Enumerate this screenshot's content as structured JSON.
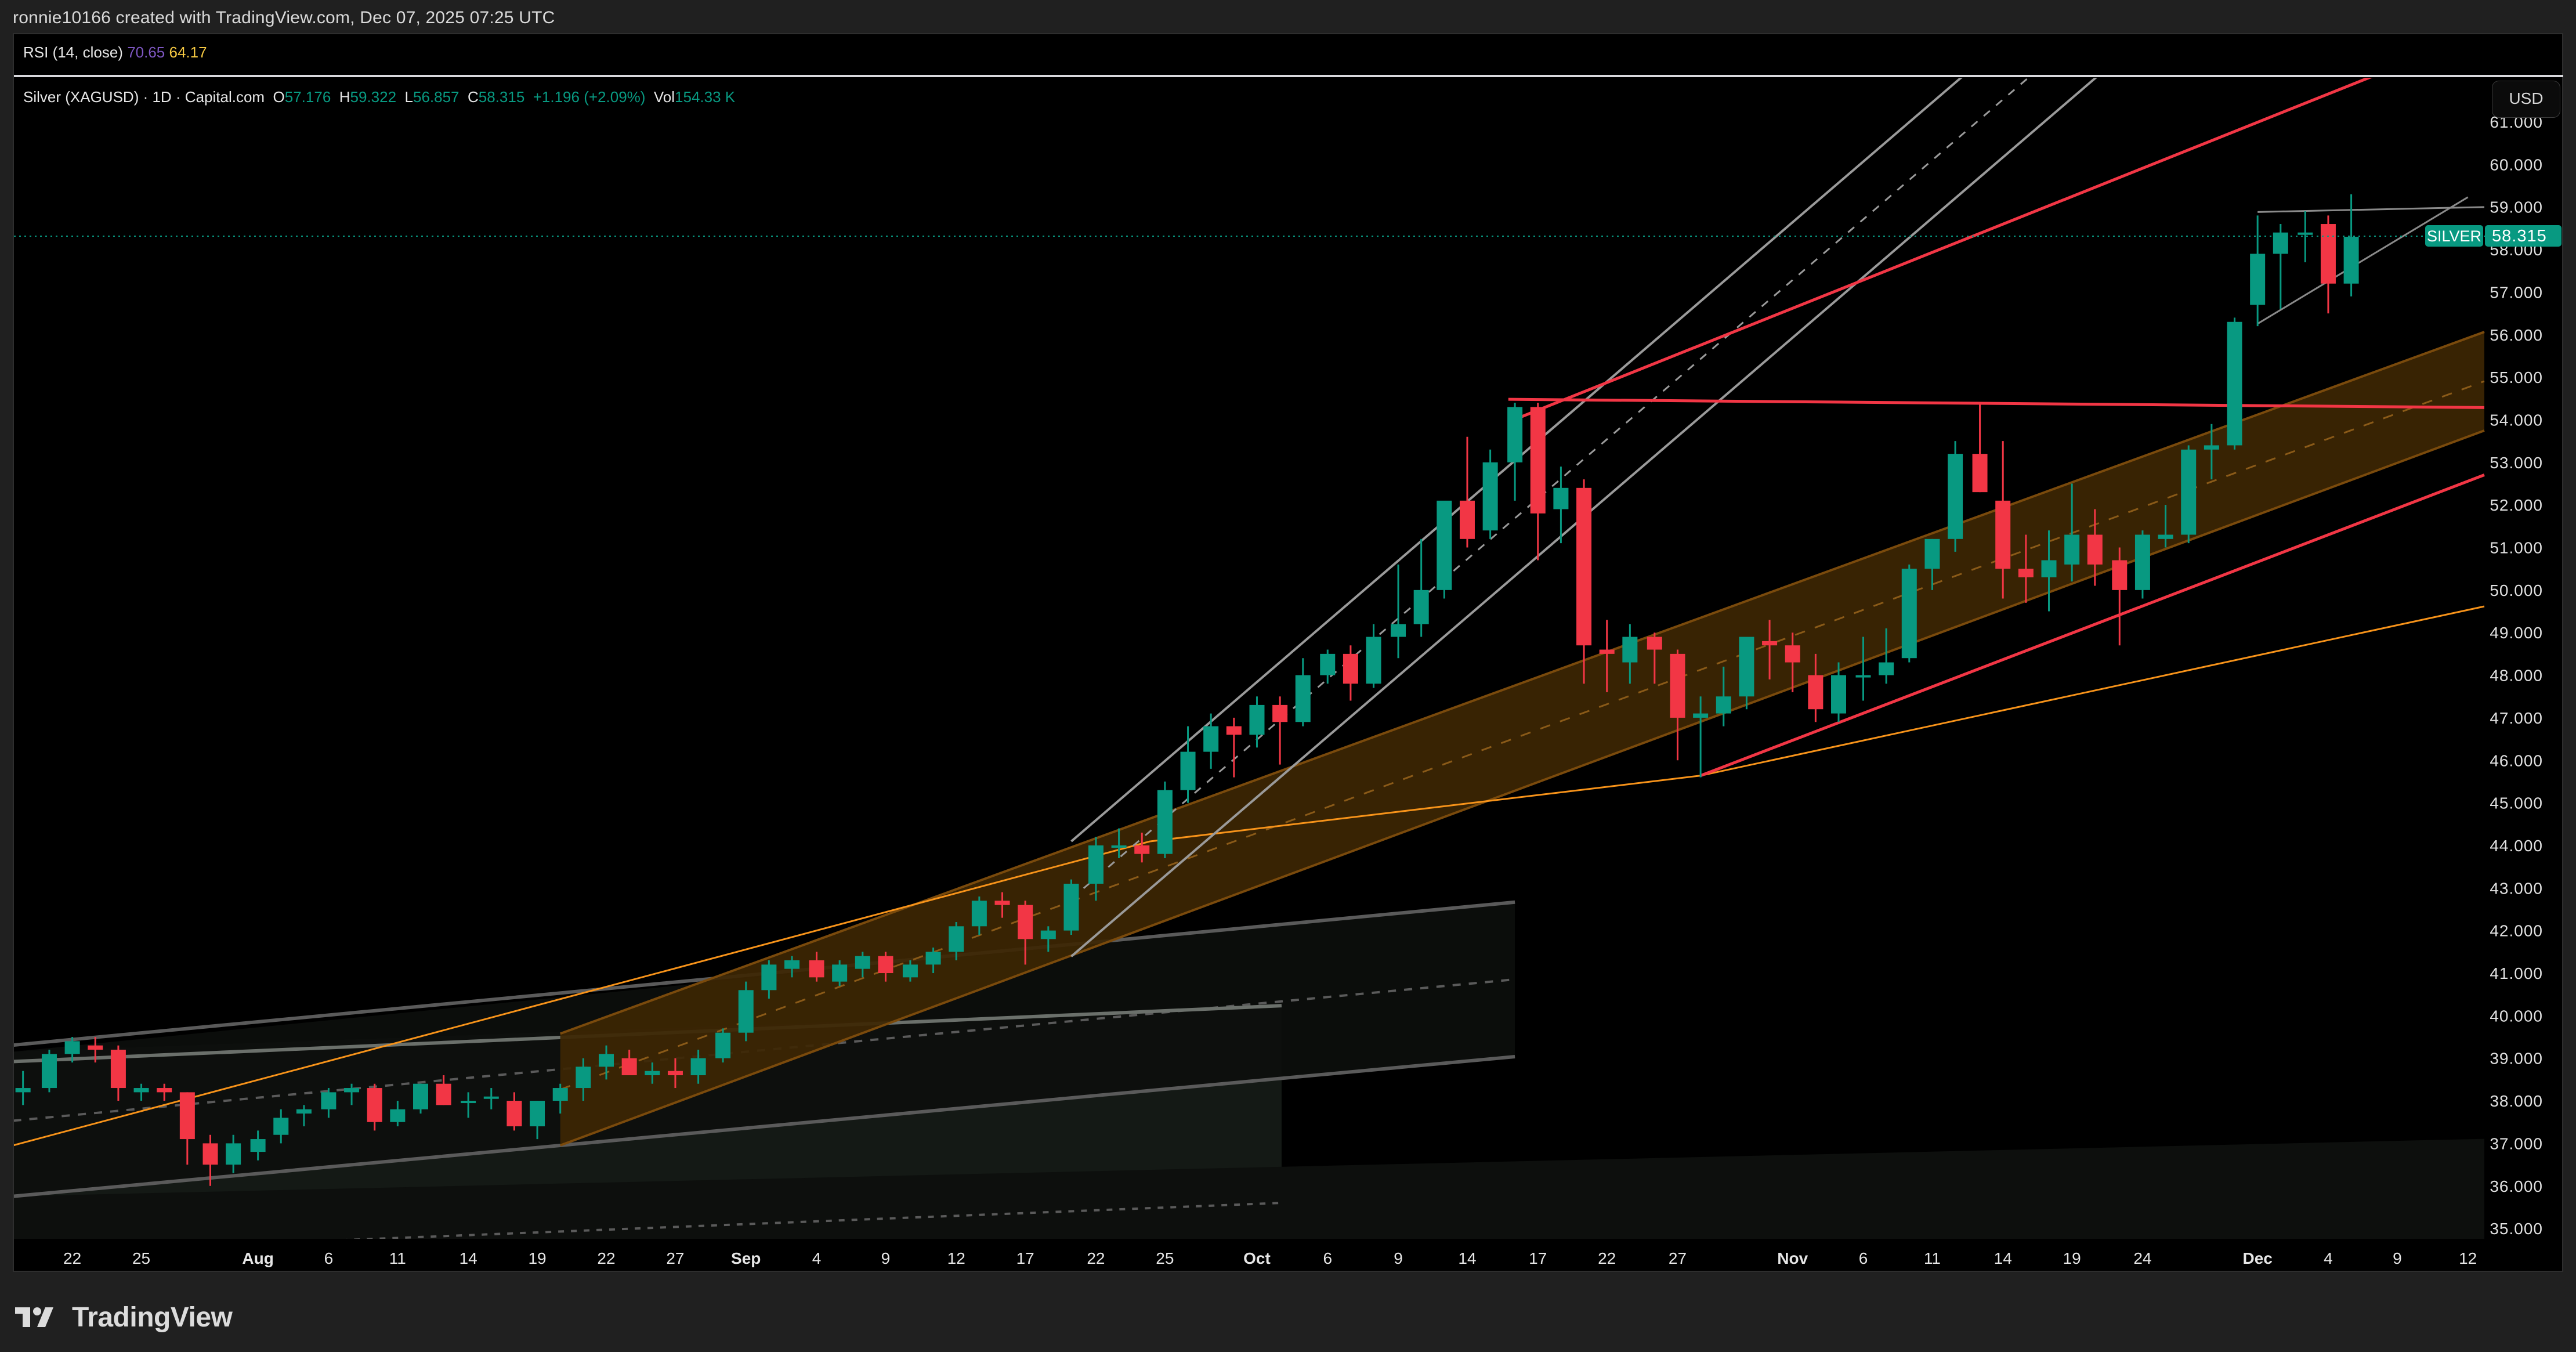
{
  "header": {
    "attribution": "ronnie10166 created with TradingView.com, Dec 07, 2025 07:25 UTC"
  },
  "rsi_legend": {
    "label": "RSI (14, close)",
    "value1": "70.65",
    "value2": "64.17"
  },
  "symbol_legend": {
    "title": "Silver (XAGUSD) · 1D · Capital.com",
    "o_label": "O",
    "o": "57.176",
    "h_label": "H",
    "h": "59.322",
    "l_label": "L",
    "l": "56.857",
    "c_label": "C",
    "c": "58.315",
    "change": "+1.196 (+2.09%)",
    "vol_label": "Vol",
    "vol": "154.33 K"
  },
  "currency_button": "USD",
  "last_price_tag": {
    "symbol": "SILVER",
    "price": "58.315"
  },
  "footer": {
    "logo_text": "TradingView"
  },
  "colors": {
    "up": "#089981",
    "down": "#f23645",
    "channel_fill": "#3d2603",
    "orange_line": "#f7931a",
    "red_line": "#f23645"
  },
  "chart_data": {
    "type": "candlestick",
    "title": "Silver (XAGUSD) · 1D · Capital.com",
    "ylabel": "USD",
    "ylim": [
      34.6,
      61.4
    ],
    "y_ticks": [
      "61.000",
      "60.000",
      "59.000",
      "58.000",
      "57.000",
      "56.000",
      "55.000",
      "54.000",
      "53.000",
      "52.000",
      "51.000",
      "50.000",
      "49.000",
      "48.000",
      "47.000",
      "46.000",
      "45.000",
      "44.000",
      "43.000",
      "42.000",
      "41.000",
      "40.000",
      "39.000",
      "38.000",
      "37.000",
      "36.000",
      "35.000"
    ],
    "x_ticks": [
      {
        "label": "22",
        "x": 44
      },
      {
        "label": "25",
        "x": 86
      },
      {
        "label": "Aug",
        "x": 157,
        "bold": true
      },
      {
        "label": "6",
        "x": 200
      },
      {
        "label": "11",
        "x": 242
      },
      {
        "label": "14",
        "x": 285
      },
      {
        "label": "19",
        "x": 327
      },
      {
        "label": "22",
        "x": 369
      },
      {
        "label": "27",
        "x": 411
      },
      {
        "label": "Sep",
        "x": 454,
        "bold": true
      },
      {
        "label": "4",
        "x": 497
      },
      {
        "label": "9",
        "x": 539
      },
      {
        "label": "12",
        "x": 582
      },
      {
        "label": "17",
        "x": 624
      },
      {
        "label": "22",
        "x": 667
      },
      {
        "label": "25",
        "x": 709
      },
      {
        "label": "Oct",
        "x": 765,
        "bold": true
      },
      {
        "label": "6",
        "x": 808
      },
      {
        "label": "9",
        "x": 851
      },
      {
        "label": "14",
        "x": 893
      },
      {
        "label": "17",
        "x": 936
      },
      {
        "label": "22",
        "x": 978
      },
      {
        "label": "27",
        "x": 1021
      },
      {
        "label": "Nov",
        "x": 1091,
        "bold": true
      },
      {
        "label": "6",
        "x": 1134
      },
      {
        "label": "11",
        "x": 1176
      },
      {
        "label": "14",
        "x": 1219
      },
      {
        "label": "19",
        "x": 1261
      },
      {
        "label": "24",
        "x": 1304
      },
      {
        "label": "Dec",
        "x": 1374,
        "bold": true
      },
      {
        "label": "4",
        "x": 1417
      },
      {
        "label": "9",
        "x": 1459
      },
      {
        "label": "12",
        "x": 1502
      }
    ],
    "last_price": 58.315,
    "candles": [
      {
        "x": 14,
        "o": 38.2,
        "h": 38.7,
        "l": 37.9,
        "c": 38.3
      },
      {
        "x": 30,
        "o": 38.3,
        "h": 39.2,
        "l": 38.2,
        "c": 39.1
      },
      {
        "x": 44,
        "o": 39.1,
        "h": 39.5,
        "l": 38.9,
        "c": 39.4
      },
      {
        "x": 58,
        "o": 39.3,
        "h": 39.5,
        "l": 38.9,
        "c": 39.2
      },
      {
        "x": 72,
        "o": 39.2,
        "h": 39.3,
        "l": 38.0,
        "c": 38.3
      },
      {
        "x": 86,
        "o": 38.2,
        "h": 38.4,
        "l": 38.0,
        "c": 38.3
      },
      {
        "x": 100,
        "o": 38.3,
        "h": 38.4,
        "l": 38.0,
        "c": 38.2
      },
      {
        "x": 114,
        "o": 38.2,
        "h": 38.2,
        "l": 36.5,
        "c": 37.1
      },
      {
        "x": 128,
        "o": 37.0,
        "h": 37.2,
        "l": 36.0,
        "c": 36.5
      },
      {
        "x": 142,
        "o": 36.5,
        "h": 37.2,
        "l": 36.3,
        "c": 37.0
      },
      {
        "x": 157,
        "o": 36.8,
        "h": 37.3,
        "l": 36.6,
        "c": 37.1
      },
      {
        "x": 171,
        "o": 37.2,
        "h": 37.8,
        "l": 37.0,
        "c": 37.6
      },
      {
        "x": 185,
        "o": 37.7,
        "h": 37.9,
        "l": 37.4,
        "c": 37.8
      },
      {
        "x": 200,
        "o": 37.8,
        "h": 38.3,
        "l": 37.6,
        "c": 38.2
      },
      {
        "x": 214,
        "o": 38.2,
        "h": 38.4,
        "l": 37.9,
        "c": 38.3
      },
      {
        "x": 228,
        "o": 38.3,
        "h": 38.4,
        "l": 37.3,
        "c": 37.5
      },
      {
        "x": 242,
        "o": 37.5,
        "h": 38.0,
        "l": 37.4,
        "c": 37.8
      },
      {
        "x": 256,
        "o": 37.8,
        "h": 38.4,
        "l": 37.7,
        "c": 38.4
      },
      {
        "x": 270,
        "o": 38.4,
        "h": 38.6,
        "l": 37.9,
        "c": 37.9
      },
      {
        "x": 285,
        "o": 38.0,
        "h": 38.2,
        "l": 37.6,
        "c": 38.0
      },
      {
        "x": 299,
        "o": 38.1,
        "h": 38.3,
        "l": 37.8,
        "c": 38.1
      },
      {
        "x": 313,
        "o": 38.0,
        "h": 38.2,
        "l": 37.3,
        "c": 37.4
      },
      {
        "x": 327,
        "o": 37.4,
        "h": 38.0,
        "l": 37.1,
        "c": 38.0
      },
      {
        "x": 341,
        "o": 38.0,
        "h": 38.4,
        "l": 37.7,
        "c": 38.3
      },
      {
        "x": 355,
        "o": 38.3,
        "h": 39.0,
        "l": 38.0,
        "c": 38.8
      },
      {
        "x": 369,
        "o": 38.8,
        "h": 39.3,
        "l": 38.5,
        "c": 39.1
      },
      {
        "x": 383,
        "o": 39.0,
        "h": 39.2,
        "l": 38.7,
        "c": 38.6
      },
      {
        "x": 397,
        "o": 38.6,
        "h": 38.9,
        "l": 38.4,
        "c": 38.7
      },
      {
        "x": 411,
        "o": 38.7,
        "h": 39.0,
        "l": 38.3,
        "c": 38.6
      },
      {
        "x": 425,
        "o": 38.6,
        "h": 39.2,
        "l": 38.4,
        "c": 39.0
      },
      {
        "x": 440,
        "o": 39.0,
        "h": 39.7,
        "l": 38.9,
        "c": 39.6
      },
      {
        "x": 454,
        "o": 39.6,
        "h": 40.8,
        "l": 39.4,
        "c": 40.6
      },
      {
        "x": 468,
        "o": 40.6,
        "h": 41.3,
        "l": 40.4,
        "c": 41.2
      },
      {
        "x": 482,
        "o": 41.1,
        "h": 41.4,
        "l": 40.9,
        "c": 41.3
      },
      {
        "x": 497,
        "o": 41.3,
        "h": 41.5,
        "l": 40.8,
        "c": 40.9
      },
      {
        "x": 511,
        "o": 40.8,
        "h": 41.3,
        "l": 40.7,
        "c": 41.2
      },
      {
        "x": 525,
        "o": 41.1,
        "h": 41.5,
        "l": 40.9,
        "c": 41.4
      },
      {
        "x": 539,
        "o": 41.4,
        "h": 41.5,
        "l": 40.8,
        "c": 41.0
      },
      {
        "x": 554,
        "o": 40.9,
        "h": 41.3,
        "l": 40.8,
        "c": 41.2
      },
      {
        "x": 568,
        "o": 41.2,
        "h": 41.6,
        "l": 41.0,
        "c": 41.5
      },
      {
        "x": 582,
        "o": 41.5,
        "h": 42.2,
        "l": 41.3,
        "c": 42.1
      },
      {
        "x": 596,
        "o": 42.1,
        "h": 42.8,
        "l": 41.9,
        "c": 42.7
      },
      {
        "x": 610,
        "o": 42.7,
        "h": 42.9,
        "l": 42.3,
        "c": 42.6
      },
      {
        "x": 624,
        "o": 42.6,
        "h": 42.7,
        "l": 41.2,
        "c": 41.8
      },
      {
        "x": 638,
        "o": 41.8,
        "h": 42.1,
        "l": 41.5,
        "c": 42.0
      },
      {
        "x": 652,
        "o": 42.0,
        "h": 43.2,
        "l": 41.9,
        "c": 43.1
      },
      {
        "x": 667,
        "o": 43.1,
        "h": 44.2,
        "l": 42.7,
        "c": 44.0
      },
      {
        "x": 681,
        "o": 44.0,
        "h": 44.4,
        "l": 43.7,
        "c": 44.0
      },
      {
        "x": 695,
        "o": 44.0,
        "h": 44.3,
        "l": 43.6,
        "c": 43.8
      },
      {
        "x": 709,
        "o": 43.8,
        "h": 45.5,
        "l": 43.7,
        "c": 45.3
      },
      {
        "x": 723,
        "o": 45.3,
        "h": 46.8,
        "l": 45.0,
        "c": 46.2
      },
      {
        "x": 737,
        "o": 46.2,
        "h": 47.1,
        "l": 45.8,
        "c": 46.8
      },
      {
        "x": 751,
        "o": 46.8,
        "h": 47.0,
        "l": 45.6,
        "c": 46.6
      },
      {
        "x": 765,
        "o": 46.6,
        "h": 47.5,
        "l": 46.3,
        "c": 47.3
      },
      {
        "x": 779,
        "o": 47.3,
        "h": 47.5,
        "l": 45.9,
        "c": 46.9
      },
      {
        "x": 793,
        "o": 46.9,
        "h": 48.4,
        "l": 46.8,
        "c": 48.0
      },
      {
        "x": 808,
        "o": 48.0,
        "h": 48.6,
        "l": 47.8,
        "c": 48.5
      },
      {
        "x": 822,
        "o": 48.5,
        "h": 48.7,
        "l": 47.4,
        "c": 47.8
      },
      {
        "x": 836,
        "o": 47.8,
        "h": 49.2,
        "l": 47.7,
        "c": 48.9
      },
      {
        "x": 851,
        "o": 48.9,
        "h": 50.6,
        "l": 48.4,
        "c": 49.2
      },
      {
        "x": 865,
        "o": 49.2,
        "h": 51.2,
        "l": 48.9,
        "c": 50.0
      },
      {
        "x": 879,
        "o": 50.0,
        "h": 52.0,
        "l": 49.8,
        "c": 52.1
      },
      {
        "x": 893,
        "o": 52.1,
        "h": 53.6,
        "l": 51.0,
        "c": 51.2
      },
      {
        "x": 907,
        "o": 51.4,
        "h": 53.3,
        "l": 51.2,
        "c": 53.0
      },
      {
        "x": 922,
        "o": 53.0,
        "h": 54.4,
        "l": 52.1,
        "c": 54.3
      },
      {
        "x": 936,
        "o": 54.3,
        "h": 54.4,
        "l": 50.7,
        "c": 51.8
      },
      {
        "x": 950,
        "o": 51.9,
        "h": 52.9,
        "l": 51.1,
        "c": 52.4
      },
      {
        "x": 964,
        "o": 52.4,
        "h": 52.6,
        "l": 47.8,
        "c": 48.7
      },
      {
        "x": 978,
        "o": 48.6,
        "h": 49.3,
        "l": 47.6,
        "c": 48.5
      },
      {
        "x": 992,
        "o": 48.3,
        "h": 49.2,
        "l": 47.8,
        "c": 48.9
      },
      {
        "x": 1007,
        "o": 48.9,
        "h": 49.0,
        "l": 47.8,
        "c": 48.6
      },
      {
        "x": 1021,
        "o": 48.5,
        "h": 48.6,
        "l": 46.0,
        "c": 47.0
      },
      {
        "x": 1035,
        "o": 47.0,
        "h": 47.5,
        "l": 45.6,
        "c": 47.1
      },
      {
        "x": 1049,
        "o": 47.1,
        "h": 48.2,
        "l": 46.8,
        "c": 47.5
      },
      {
        "x": 1063,
        "o": 47.5,
        "h": 48.7,
        "l": 47.2,
        "c": 48.9
      },
      {
        "x": 1077,
        "o": 48.8,
        "h": 49.3,
        "l": 47.9,
        "c": 48.7
      },
      {
        "x": 1091,
        "o": 48.7,
        "h": 49.0,
        "l": 47.6,
        "c": 48.3
      },
      {
        "x": 1105,
        "o": 48.0,
        "h": 48.5,
        "l": 46.9,
        "c": 47.2
      },
      {
        "x": 1119,
        "o": 47.1,
        "h": 48.3,
        "l": 46.9,
        "c": 48.0
      },
      {
        "x": 1134,
        "o": 48.0,
        "h": 48.9,
        "l": 47.4,
        "c": 48.0
      },
      {
        "x": 1148,
        "o": 48.0,
        "h": 49.1,
        "l": 47.8,
        "c": 48.3
      },
      {
        "x": 1162,
        "o": 48.4,
        "h": 50.6,
        "l": 48.3,
        "c": 50.5
      },
      {
        "x": 1176,
        "o": 50.5,
        "h": 51.2,
        "l": 50.0,
        "c": 51.2
      },
      {
        "x": 1190,
        "o": 51.2,
        "h": 53.5,
        "l": 50.9,
        "c": 53.2
      },
      {
        "x": 1205,
        "o": 53.2,
        "h": 54.4,
        "l": 52.3,
        "c": 52.3
      },
      {
        "x": 1219,
        "o": 52.1,
        "h": 53.5,
        "l": 49.8,
        "c": 50.5
      },
      {
        "x": 1233,
        "o": 50.5,
        "h": 51.3,
        "l": 49.7,
        "c": 50.3
      },
      {
        "x": 1247,
        "o": 50.3,
        "h": 51.4,
        "l": 49.5,
        "c": 50.7
      },
      {
        "x": 1261,
        "o": 50.6,
        "h": 52.5,
        "l": 50.2,
        "c": 51.3
      },
      {
        "x": 1275,
        "o": 51.3,
        "h": 51.9,
        "l": 50.1,
        "c": 50.6
      },
      {
        "x": 1290,
        "o": 50.7,
        "h": 51.0,
        "l": 48.7,
        "c": 50.0
      },
      {
        "x": 1304,
        "o": 50.0,
        "h": 51.4,
        "l": 49.8,
        "c": 51.3
      },
      {
        "x": 1318,
        "o": 51.2,
        "h": 52.0,
        "l": 51.0,
        "c": 51.3
      },
      {
        "x": 1332,
        "o": 51.3,
        "h": 53.4,
        "l": 51.1,
        "c": 53.3
      },
      {
        "x": 1346,
        "o": 53.3,
        "h": 53.9,
        "l": 52.6,
        "c": 53.4
      },
      {
        "x": 1360,
        "o": 53.4,
        "h": 56.4,
        "l": 53.3,
        "c": 56.3
      },
      {
        "x": 1374,
        "o": 56.7,
        "h": 58.8,
        "l": 56.2,
        "c": 57.9
      },
      {
        "x": 1388,
        "o": 57.9,
        "h": 58.6,
        "l": 56.6,
        "c": 58.4
      },
      {
        "x": 1403,
        "o": 58.4,
        "h": 58.9,
        "l": 57.7,
        "c": 58.4
      },
      {
        "x": 1417,
        "o": 58.6,
        "h": 58.8,
        "l": 56.5,
        "c": 57.2
      },
      {
        "x": 1431,
        "o": 57.2,
        "h": 59.3,
        "l": 56.9,
        "c": 58.3
      }
    ]
  }
}
